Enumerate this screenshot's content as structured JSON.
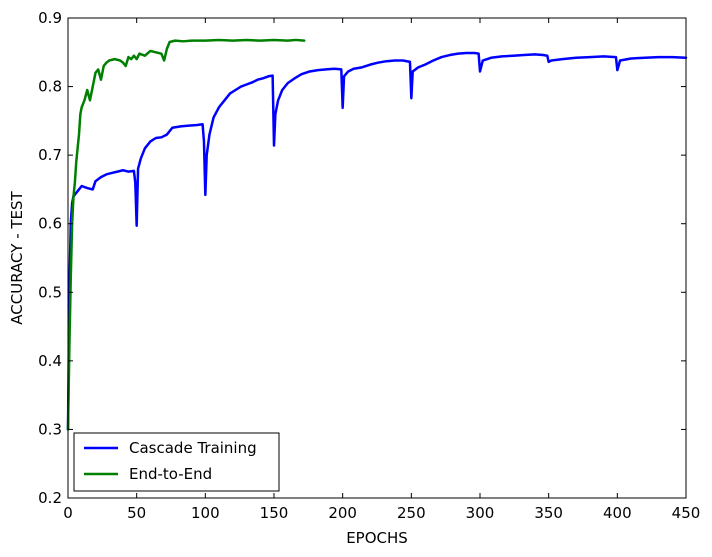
{
  "chart_data": {
    "type": "line",
    "xlabel": "EPOCHS",
    "ylabel": "ACCURACY - TEST",
    "xlim": [
      0,
      450
    ],
    "ylim": [
      0.2,
      0.9
    ],
    "xticks": [
      "0",
      "50",
      "100",
      "150",
      "200",
      "250",
      "300",
      "350",
      "400",
      "450"
    ],
    "yticks": [
      "0.2",
      "0.3",
      "0.4",
      "0.5",
      "0.6",
      "0.7",
      "0.8",
      "0.9"
    ],
    "grid": false,
    "legend_position": "lower-left",
    "series": [
      {
        "name": "Cascade Training",
        "color": "#0000ff",
        "points": [
          [
            0,
            0.3
          ],
          [
            1,
            0.5
          ],
          [
            2,
            0.6
          ],
          [
            3,
            0.63
          ],
          [
            4,
            0.64
          ],
          [
            6,
            0.645
          ],
          [
            8,
            0.65
          ],
          [
            10,
            0.655
          ],
          [
            14,
            0.652
          ],
          [
            18,
            0.65
          ],
          [
            20,
            0.662
          ],
          [
            24,
            0.668
          ],
          [
            28,
            0.672
          ],
          [
            32,
            0.674
          ],
          [
            36,
            0.676
          ],
          [
            40,
            0.678
          ],
          [
            44,
            0.676
          ],
          [
            48,
            0.677
          ],
          [
            49,
            0.66
          ],
          [
            50,
            0.597
          ],
          [
            51,
            0.68
          ],
          [
            53,
            0.695
          ],
          [
            56,
            0.71
          ],
          [
            60,
            0.72
          ],
          [
            64,
            0.725
          ],
          [
            68,
            0.726
          ],
          [
            72,
            0.73
          ],
          [
            76,
            0.74
          ],
          [
            82,
            0.742
          ],
          [
            88,
            0.743
          ],
          [
            94,
            0.744
          ],
          [
            98,
            0.745
          ],
          [
            99,
            0.72
          ],
          [
            100,
            0.642
          ],
          [
            101,
            0.7
          ],
          [
            103,
            0.73
          ],
          [
            106,
            0.755
          ],
          [
            110,
            0.77
          ],
          [
            114,
            0.78
          ],
          [
            118,
            0.79
          ],
          [
            122,
            0.795
          ],
          [
            126,
            0.8
          ],
          [
            130,
            0.803
          ],
          [
            134,
            0.806
          ],
          [
            138,
            0.81
          ],
          [
            142,
            0.812
          ],
          [
            146,
            0.815
          ],
          [
            149,
            0.816
          ],
          [
            150,
            0.714
          ],
          [
            151,
            0.76
          ],
          [
            153,
            0.78
          ],
          [
            156,
            0.795
          ],
          [
            160,
            0.805
          ],
          [
            165,
            0.812
          ],
          [
            170,
            0.818
          ],
          [
            176,
            0.822
          ],
          [
            182,
            0.824
          ],
          [
            188,
            0.825
          ],
          [
            194,
            0.826
          ],
          [
            199,
            0.825
          ],
          [
            200,
            0.769
          ],
          [
            201,
            0.815
          ],
          [
            204,
            0.822
          ],
          [
            208,
            0.826
          ],
          [
            214,
            0.828
          ],
          [
            220,
            0.832
          ],
          [
            226,
            0.835
          ],
          [
            232,
            0.837
          ],
          [
            238,
            0.838
          ],
          [
            244,
            0.838
          ],
          [
            249,
            0.836
          ],
          [
            250,
            0.783
          ],
          [
            251,
            0.822
          ],
          [
            255,
            0.828
          ],
          [
            260,
            0.832
          ],
          [
            266,
            0.838
          ],
          [
            272,
            0.843
          ],
          [
            278,
            0.846
          ],
          [
            284,
            0.848
          ],
          [
            290,
            0.849
          ],
          [
            296,
            0.849
          ],
          [
            299,
            0.848
          ],
          [
            300,
            0.822
          ],
          [
            302,
            0.838
          ],
          [
            308,
            0.842
          ],
          [
            316,
            0.844
          ],
          [
            324,
            0.845
          ],
          [
            332,
            0.846
          ],
          [
            340,
            0.847
          ],
          [
            346,
            0.846
          ],
          [
            349,
            0.845
          ],
          [
            350,
            0.836
          ],
          [
            352,
            0.838
          ],
          [
            360,
            0.84
          ],
          [
            370,
            0.842
          ],
          [
            380,
            0.843
          ],
          [
            390,
            0.844
          ],
          [
            399,
            0.843
          ],
          [
            400,
            0.824
          ],
          [
            402,
            0.838
          ],
          [
            410,
            0.841
          ],
          [
            420,
            0.842
          ],
          [
            430,
            0.843
          ],
          [
            440,
            0.843
          ],
          [
            450,
            0.842
          ]
        ]
      },
      {
        "name": "End-to-End",
        "color": "#008000",
        "points": [
          [
            0,
            0.3
          ],
          [
            1,
            0.42
          ],
          [
            2,
            0.52
          ],
          [
            3,
            0.6
          ],
          [
            4,
            0.64
          ],
          [
            5,
            0.66
          ],
          [
            6,
            0.69
          ],
          [
            7,
            0.71
          ],
          [
            8,
            0.73
          ],
          [
            9,
            0.76
          ],
          [
            10,
            0.77
          ],
          [
            12,
            0.78
          ],
          [
            14,
            0.795
          ],
          [
            16,
            0.78
          ],
          [
            18,
            0.8
          ],
          [
            20,
            0.82
          ],
          [
            22,
            0.825
          ],
          [
            24,
            0.81
          ],
          [
            26,
            0.83
          ],
          [
            28,
            0.835
          ],
          [
            30,
            0.838
          ],
          [
            34,
            0.84
          ],
          [
            38,
            0.838
          ],
          [
            40,
            0.835
          ],
          [
            42,
            0.83
          ],
          [
            44,
            0.843
          ],
          [
            46,
            0.84
          ],
          [
            48,
            0.845
          ],
          [
            50,
            0.84
          ],
          [
            52,
            0.848
          ],
          [
            56,
            0.845
          ],
          [
            60,
            0.852
          ],
          [
            64,
            0.85
          ],
          [
            68,
            0.848
          ],
          [
            70,
            0.838
          ],
          [
            72,
            0.855
          ],
          [
            74,
            0.865
          ],
          [
            78,
            0.867
          ],
          [
            84,
            0.866
          ],
          [
            90,
            0.867
          ],
          [
            100,
            0.867
          ],
          [
            110,
            0.868
          ],
          [
            120,
            0.867
          ],
          [
            130,
            0.868
          ],
          [
            140,
            0.867
          ],
          [
            150,
            0.868
          ],
          [
            160,
            0.867
          ],
          [
            166,
            0.868
          ],
          [
            172,
            0.867
          ]
        ]
      }
    ]
  }
}
